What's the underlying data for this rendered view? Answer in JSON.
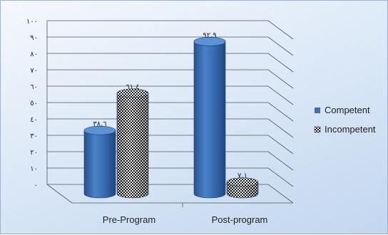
{
  "chart_data": {
    "type": "bar",
    "subtype": "3d-cylinder",
    "categories": [
      "Pre-Program",
      "Post-program"
    ],
    "series": [
      {
        "name": "Competent",
        "values": [
          38.6,
          92.9
        ],
        "data_labels": [
          "٣٨.٦",
          "٩٢.٩"
        ],
        "color": "#3a6fb5"
      },
      {
        "name": "Incompetent",
        "values": [
          61.4,
          7.1
        ],
        "data_labels": [
          "٦١.٤",
          "٧.١"
        ],
        "color": "checkerboard"
      }
    ],
    "ylim": [
      0,
      100
    ],
    "y_ticks": [
      0,
      10,
      20,
      30,
      40,
      50,
      60,
      70,
      80,
      90,
      100
    ],
    "y_tick_labels": [
      "٠",
      "١٠",
      "٢٠",
      "٣٠",
      "٤٠",
      "٥٠",
      "٦٠",
      "٧٠",
      "٨٠",
      "٩٠",
      "١٠٠"
    ],
    "grid": true,
    "legend": "right",
    "title": "",
    "xlabel": "",
    "ylabel": ""
  }
}
